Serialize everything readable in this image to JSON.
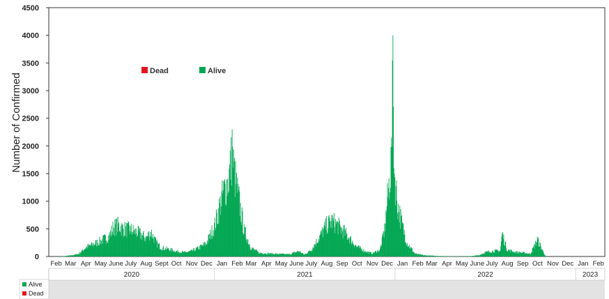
{
  "chart_data": {
    "type": "bar",
    "title": "",
    "ylabel": "Number of Confirmed",
    "xlabel": "",
    "ylim": [
      0,
      4500
    ],
    "yticks": [
      0,
      500,
      1000,
      1500,
      2000,
      2500,
      3000,
      3500,
      4000,
      4500
    ],
    "grid": false,
    "legend": {
      "placement": "top-left inside plot",
      "entries": [
        {
          "name": "Dead",
          "color": "#e8141c"
        },
        {
          "name": "Alive",
          "color": "#00a651"
        }
      ]
    },
    "x_range": [
      "2020-02-01",
      "2023-03-01"
    ],
    "month_labels": [
      {
        "label": "Feb",
        "date": "2020-02-01"
      },
      {
        "label": "Mar",
        "date": "2020-03-01"
      },
      {
        "label": "Apr",
        "date": "2020-04-01"
      },
      {
        "label": "May",
        "date": "2020-05-01"
      },
      {
        "label": "June",
        "date": "2020-06-01"
      },
      {
        "label": "July",
        "date": "2020-07-01"
      },
      {
        "label": "Aug",
        "date": "2020-08-01"
      },
      {
        "label": "Sept",
        "date": "2020-09-01"
      },
      {
        "label": "Oct",
        "date": "2020-10-01"
      },
      {
        "label": "Nov",
        "date": "2020-11-01"
      },
      {
        "label": "Dec",
        "date": "2020-12-01"
      },
      {
        "label": "Jan",
        "date": "2021-01-01"
      },
      {
        "label": "Feb",
        "date": "2021-02-01"
      },
      {
        "label": "Mar",
        "date": "2021-03-01"
      },
      {
        "label": "Apr",
        "date": "2021-04-01"
      },
      {
        "label": "May",
        "date": "2021-05-01"
      },
      {
        "label": "June",
        "date": "2021-06-01"
      },
      {
        "label": "July",
        "date": "2021-07-01"
      },
      {
        "label": "Aug",
        "date": "2021-08-01"
      },
      {
        "label": "Sep",
        "date": "2021-09-01"
      },
      {
        "label": "Oct",
        "date": "2021-10-01"
      },
      {
        "label": "Nov",
        "date": "2021-11-01"
      },
      {
        "label": "Dec",
        "date": "2021-12-01"
      },
      {
        "label": "Jan",
        "date": "2022-01-01"
      },
      {
        "label": "Feb",
        "date": "2022-02-01"
      },
      {
        "label": "Mar",
        "date": "2022-03-01"
      },
      {
        "label": "Apr",
        "date": "2022-04-01"
      },
      {
        "label": "May",
        "date": "2022-05-01"
      },
      {
        "label": "June",
        "date": "2022-06-01"
      },
      {
        "label": "July",
        "date": "2022-07-01"
      },
      {
        "label": "Aug",
        "date": "2022-08-01"
      },
      {
        "label": "Sep",
        "date": "2022-09-01"
      },
      {
        "label": "Oct",
        "date": "2022-10-01"
      },
      {
        "label": "Nov",
        "date": "2022-11-01"
      },
      {
        "label": "Dec",
        "date": "2022-12-01"
      },
      {
        "label": "Jan",
        "date": "2023-01-01"
      },
      {
        "label": "Feb",
        "date": "2023-02-01"
      }
    ],
    "year_labels": [
      {
        "label": "2020",
        "start": "2020-02-01",
        "end": "2021-01-01"
      },
      {
        "label": "2021",
        "start": "2021-01-01",
        "end": "2022-01-01"
      },
      {
        "label": "2022",
        "start": "2022-01-01",
        "end": "2023-01-01"
      },
      {
        "label": "2023",
        "start": "2023-01-01",
        "end": "2023-03-01"
      }
    ],
    "series": [
      {
        "name": "Alive",
        "color": "#00a651",
        "points": [
          [
            "2020-02-15",
            0
          ],
          [
            "2020-03-01",
            5
          ],
          [
            "2020-03-20",
            30
          ],
          [
            "2020-04-01",
            60
          ],
          [
            "2020-04-15",
            200
          ],
          [
            "2020-05-01",
            280
          ],
          [
            "2020-05-15",
            350
          ],
          [
            "2020-06-01",
            450
          ],
          [
            "2020-06-10",
            650
          ],
          [
            "2020-06-20",
            700
          ],
          [
            "2020-07-01",
            620
          ],
          [
            "2020-07-15",
            600
          ],
          [
            "2020-08-01",
            520
          ],
          [
            "2020-08-15",
            420
          ],
          [
            "2020-08-25",
            550
          ],
          [
            "2020-09-05",
            300
          ],
          [
            "2020-09-15",
            200
          ],
          [
            "2020-10-01",
            160
          ],
          [
            "2020-10-15",
            120
          ],
          [
            "2020-11-01",
            90
          ],
          [
            "2020-11-15",
            120
          ],
          [
            "2020-12-01",
            200
          ],
          [
            "2020-12-15",
            300
          ],
          [
            "2021-01-01",
            700
          ],
          [
            "2021-01-10",
            1100
          ],
          [
            "2021-01-20",
            1500
          ],
          [
            "2021-01-28",
            1700
          ],
          [
            "2021-02-05",
            2300
          ],
          [
            "2021-02-12",
            1700
          ],
          [
            "2021-02-20",
            1200
          ],
          [
            "2021-03-01",
            600
          ],
          [
            "2021-03-15",
            200
          ],
          [
            "2021-04-01",
            80
          ],
          [
            "2021-05-01",
            60
          ],
          [
            "2021-06-01",
            50
          ],
          [
            "2021-06-20",
            120
          ],
          [
            "2021-07-01",
            40
          ],
          [
            "2021-07-15",
            150
          ],
          [
            "2021-08-01",
            450
          ],
          [
            "2021-08-15",
            700
          ],
          [
            "2021-08-25",
            800
          ],
          [
            "2021-09-05",
            720
          ],
          [
            "2021-09-20",
            550
          ],
          [
            "2021-10-01",
            400
          ],
          [
            "2021-10-15",
            220
          ],
          [
            "2021-11-01",
            120
          ],
          [
            "2021-11-15",
            70
          ],
          [
            "2021-12-01",
            150
          ],
          [
            "2021-12-10",
            600
          ],
          [
            "2021-12-18",
            1500
          ],
          [
            "2021-12-24",
            2150
          ],
          [
            "2021-12-27",
            4000
          ],
          [
            "2021-12-30",
            1900
          ],
          [
            "2022-01-05",
            1200
          ],
          [
            "2022-01-15",
            700
          ],
          [
            "2022-01-25",
            300
          ],
          [
            "2022-02-10",
            60
          ],
          [
            "2022-03-01",
            25
          ],
          [
            "2022-04-01",
            10
          ],
          [
            "2022-05-01",
            5
          ],
          [
            "2022-06-01",
            5
          ],
          [
            "2022-06-20",
            30
          ],
          [
            "2022-07-01",
            90
          ],
          [
            "2022-07-15",
            120
          ],
          [
            "2022-08-01",
            130
          ],
          [
            "2022-08-05",
            520
          ],
          [
            "2022-08-15",
            150
          ],
          [
            "2022-09-01",
            100
          ],
          [
            "2022-09-20",
            80
          ],
          [
            "2022-10-01",
            60
          ],
          [
            "2022-10-15",
            380
          ],
          [
            "2022-10-25",
            150
          ],
          [
            "2022-11-01",
            0
          ],
          [
            "2023-02-28",
            0
          ]
        ]
      },
      {
        "name": "Dead",
        "color": "#e8141c",
        "points": []
      }
    ]
  }
}
